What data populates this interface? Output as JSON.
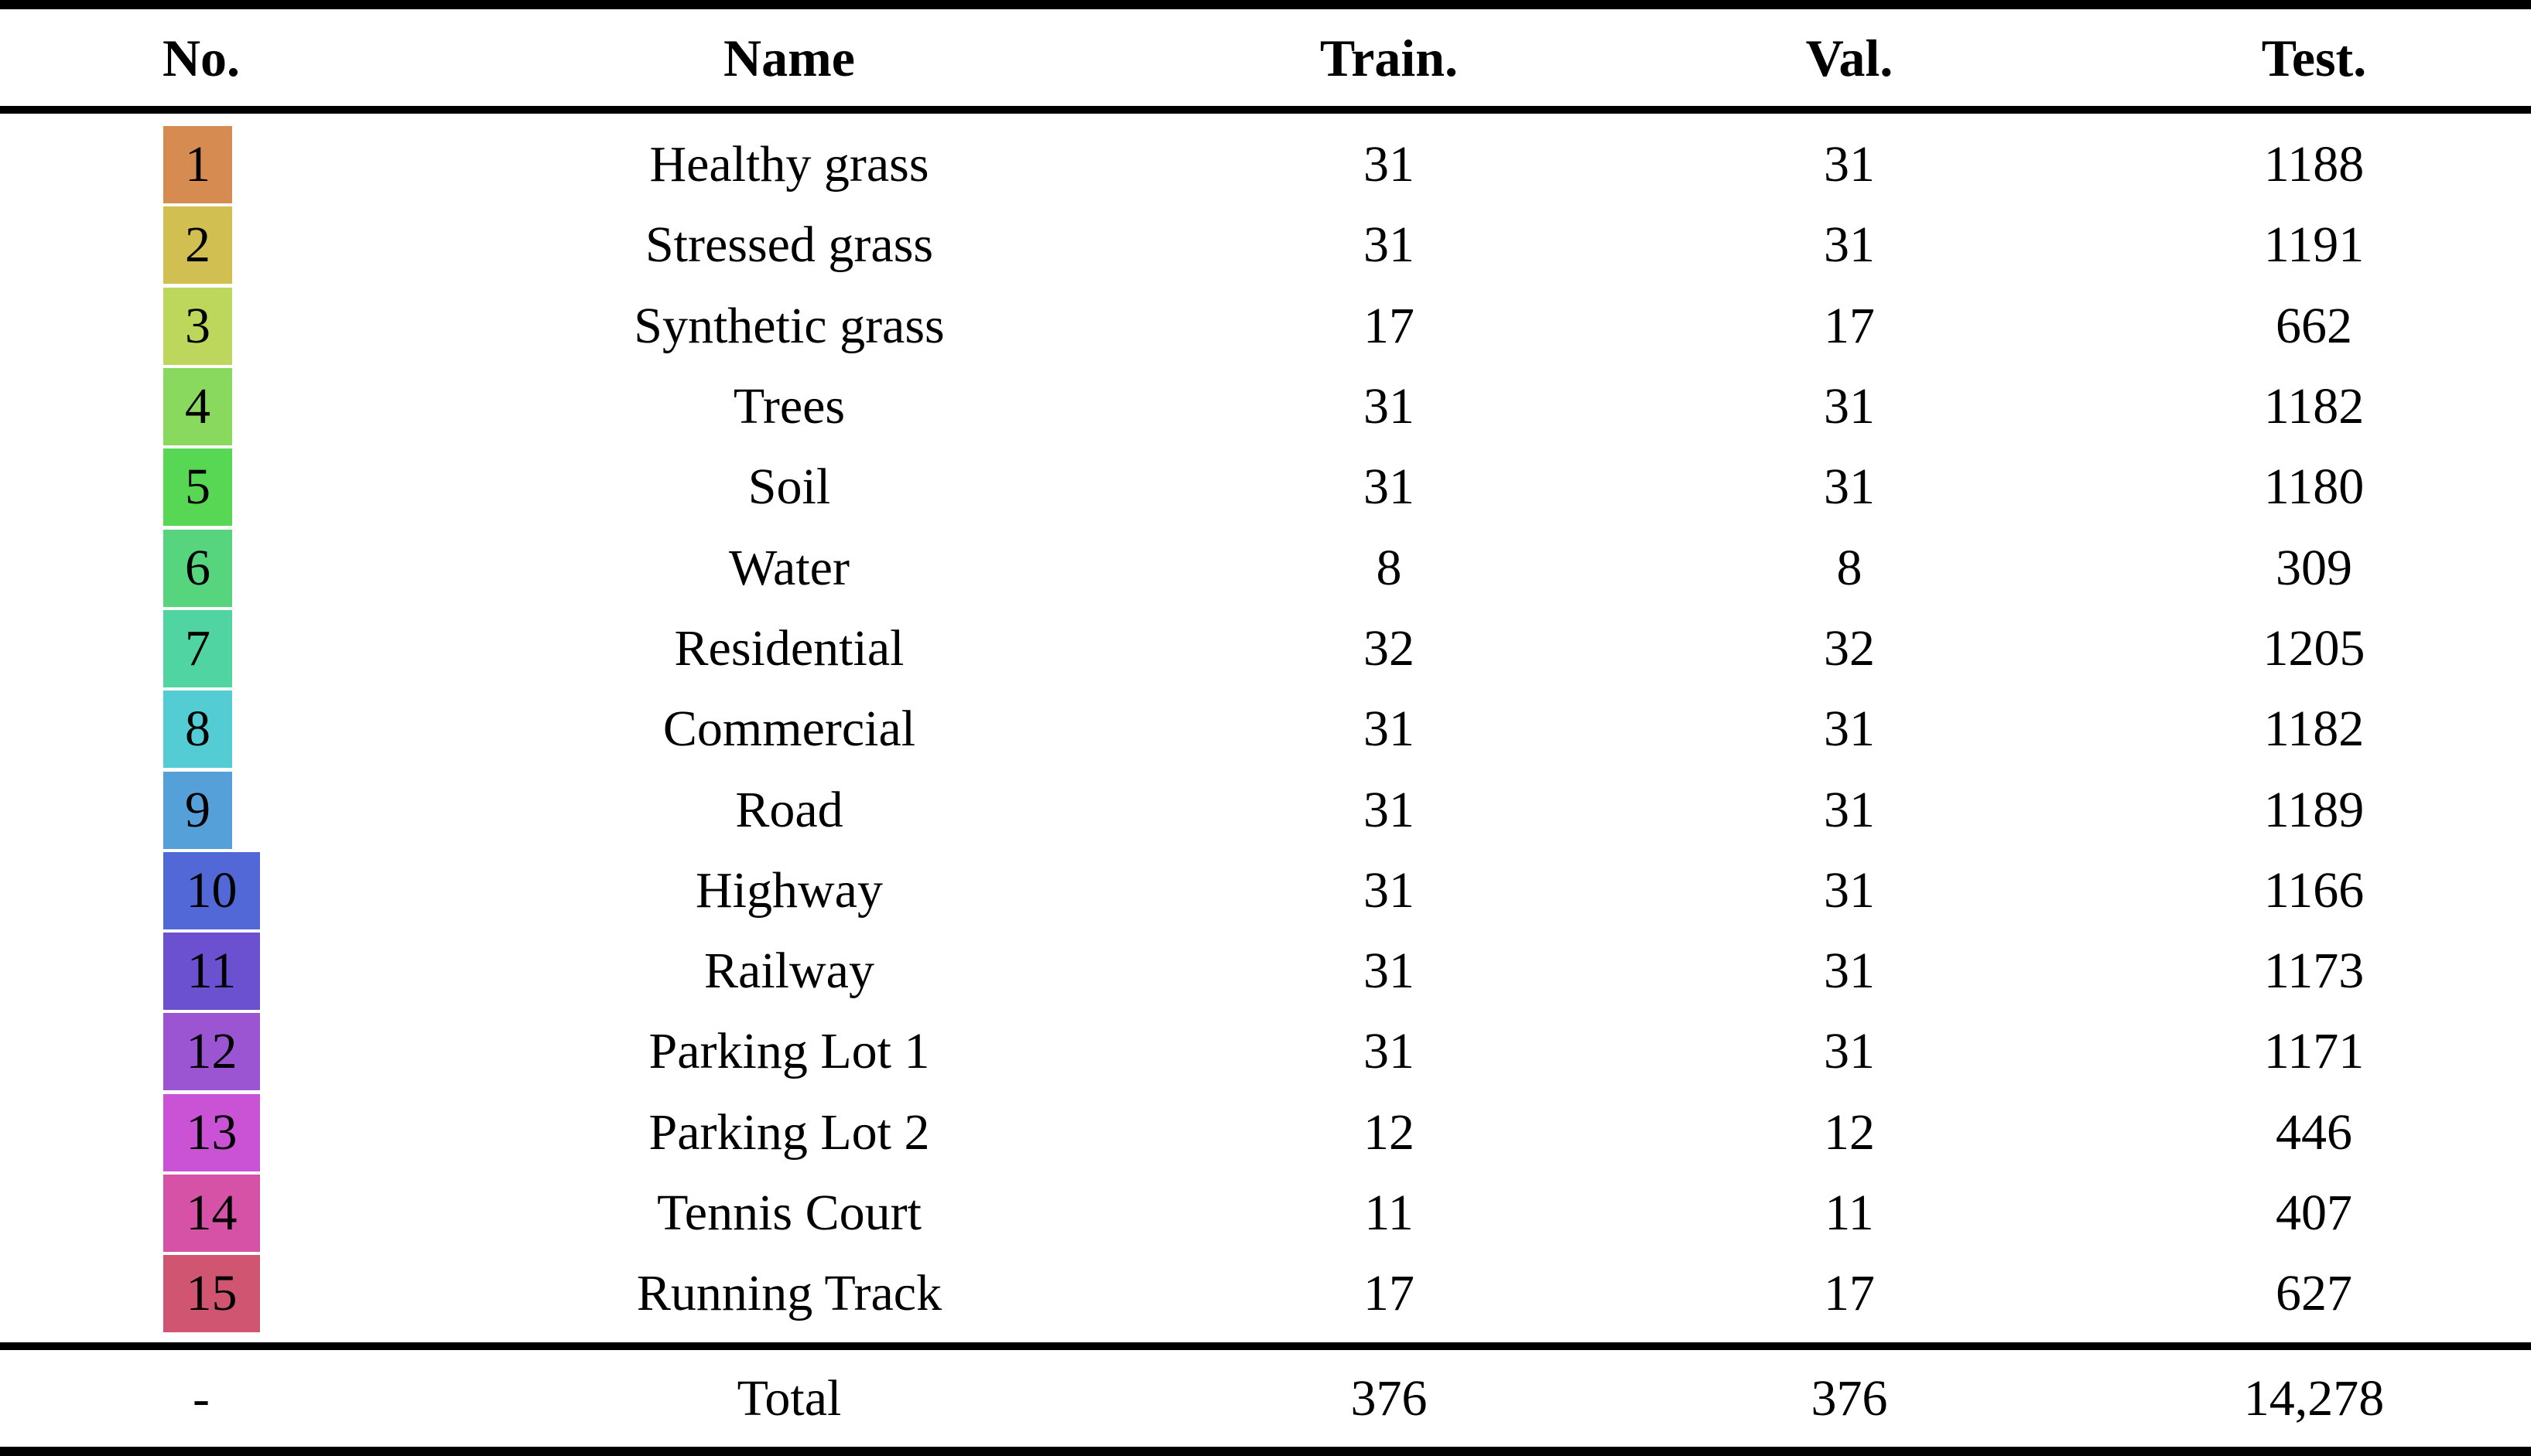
{
  "table": {
    "headers": {
      "no": "No.",
      "name": "Name",
      "train": "Train.",
      "val": "Val.",
      "test": "Test."
    },
    "rows": [
      {
        "no": "1",
        "name": "Healthy grass",
        "train": "31",
        "val": "31",
        "test": "1188",
        "color": "#d68c50"
      },
      {
        "no": "2",
        "name": "Stressed grass",
        "train": "31",
        "val": "31",
        "test": "1191",
        "color": "#d2bf52"
      },
      {
        "no": "3",
        "name": "Synthetic grass",
        "train": "17",
        "val": "17",
        "test": "662",
        "color": "#bdd75c"
      },
      {
        "no": "4",
        "name": "Trees",
        "train": "31",
        "val": "31",
        "test": "1182",
        "color": "#8ad95f"
      },
      {
        "no": "5",
        "name": "Soil",
        "train": "31",
        "val": "31",
        "test": "1180",
        "color": "#58d755"
      },
      {
        "no": "6",
        "name": "Water",
        "train": "8",
        "val": "8",
        "test": "309",
        "color": "#57d47e"
      },
      {
        "no": "7",
        "name": "Residential",
        "train": "32",
        "val": "32",
        "test": "1205",
        "color": "#50d4a2"
      },
      {
        "no": "8",
        "name": "Commercial",
        "train": "31",
        "val": "31",
        "test": "1182",
        "color": "#54ccd3"
      },
      {
        "no": "9",
        "name": "Road",
        "train": "31",
        "val": "31",
        "test": "1189",
        "color": "#55a0d8"
      },
      {
        "no": "10",
        "name": "Highway",
        "train": "31",
        "val": "31",
        "test": "1166",
        "color": "#5168d6"
      },
      {
        "no": "11",
        "name": "Railway",
        "train": "31",
        "val": "31",
        "test": "1173",
        "color": "#6b51d0"
      },
      {
        "no": "12",
        "name": "Parking Lot 1",
        "train": "31",
        "val": "31",
        "test": "1171",
        "color": "#9b54d2"
      },
      {
        "no": "13",
        "name": "Parking Lot 2",
        "train": "12",
        "val": "12",
        "test": "446",
        "color": "#c953d4"
      },
      {
        "no": "14",
        "name": "Tennis Court",
        "train": "11",
        "val": "11",
        "test": "407",
        "color": "#d552a6"
      },
      {
        "no": "15",
        "name": "Running Track",
        "train": "17",
        "val": "17",
        "test": "627",
        "color": "#d05570"
      }
    ],
    "total": {
      "no": "-",
      "name": "Total",
      "train": "376",
      "val": "376",
      "test": "14,278"
    }
  },
  "colors": {
    "rule": "#000000",
    "background": "#ffffff",
    "text": "#000000"
  }
}
